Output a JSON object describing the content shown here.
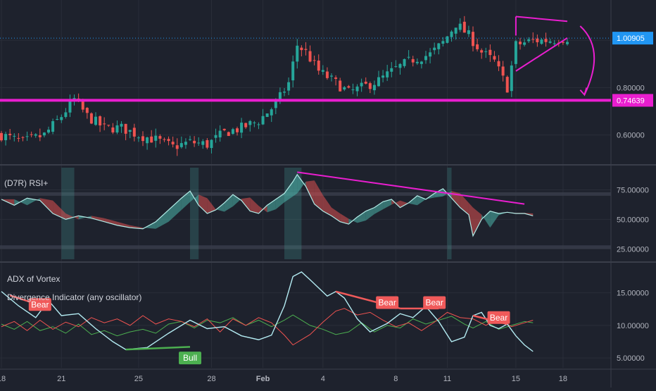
{
  "colors": {
    "background": "#1e222d",
    "grid": "#2a2e39",
    "separator": "#3a3e4a",
    "axis_text": "#b2b5be",
    "bull_candle": "#26a69a",
    "bear_candle": "#ef5350",
    "magenta": "#e91ecf",
    "price_label_bg": "#2196f3",
    "rsi_line": "#b2ebe6",
    "rsi_fill_up": "#4db6ac",
    "rsi_fill_down": "#e05050",
    "rsi_band": "#3a3f4b",
    "vortex_cyan": "#b3ebf2",
    "vortex_red": "#ef5350",
    "vortex_green": "#4caf50",
    "bear_label": "#f05a5a",
    "bull_label": "#4caf50"
  },
  "chart_data": [
    {
      "type": "candlestick",
      "panel": "price",
      "x_ticks": [
        "18",
        "21",
        "25",
        "28",
        "Feb",
        "4",
        "8",
        "11",
        "15",
        "18"
      ],
      "y_ticks": [
        "0.60000",
        "0.80000"
      ],
      "ylim": [
        0.48,
        1.17
      ],
      "current_price_label": "1.00905",
      "current_price": 1.00905,
      "support_label": "0.74639",
      "support_level": 0.74639,
      "annotations": [
        "symmetrical triangle",
        "downward arrow"
      ],
      "close_path": [
        [
          0,
          0.6
        ],
        [
          5,
          0.57
        ],
        [
          10,
          0.6
        ],
        [
          14,
          0.68
        ],
        [
          17,
          0.75
        ],
        [
          20,
          0.68
        ],
        [
          24,
          0.63
        ],
        [
          28,
          0.63
        ],
        [
          32,
          0.6
        ],
        [
          36,
          0.58
        ],
        [
          40,
          0.55
        ],
        [
          44,
          0.57
        ],
        [
          48,
          0.56
        ],
        [
          52,
          0.61
        ],
        [
          56,
          0.63
        ],
        [
          60,
          0.66
        ],
        [
          64,
          0.73
        ],
        [
          67,
          0.82
        ],
        [
          69,
          0.98
        ],
        [
          71,
          0.95
        ],
        [
          74,
          0.87
        ],
        [
          78,
          0.82
        ],
        [
          81,
          0.78
        ],
        [
          84,
          0.8
        ],
        [
          88,
          0.83
        ],
        [
          92,
          0.88
        ],
        [
          96,
          0.92
        ],
        [
          100,
          0.94
        ],
        [
          103,
          0.99
        ],
        [
          106,
          1.07
        ],
        [
          109,
          1.02
        ],
        [
          112,
          0.95
        ],
        [
          115,
          0.91
        ],
        [
          118,
          0.8
        ],
        [
          120,
          0.98
        ],
        [
          124,
          1.0
        ],
        [
          128,
          1.0
        ],
        [
          132,
          1.01
        ]
      ],
      "grid": true
    },
    {
      "type": "line",
      "panel": "rsi",
      "title": "(D7R) RSI+",
      "y_ticks": [
        "25.00000",
        "50.00000",
        "75.00000"
      ],
      "ylim": [
        15,
        95
      ],
      "bands": [
        [
          25,
          28
        ],
        [
          70,
          73
        ]
      ],
      "series": [
        {
          "values": [
            [
              0,
              67
            ],
            [
              3,
              62
            ],
            [
              6,
              68
            ],
            [
              9,
              66
            ],
            [
              12,
              55
            ],
            [
              15,
              50
            ],
            [
              18,
              53
            ],
            [
              21,
              51
            ],
            [
              24,
              48
            ],
            [
              27,
              45
            ],
            [
              30,
              43
            ],
            [
              33,
              42
            ],
            [
              36,
              48
            ],
            [
              39,
              58
            ],
            [
              42,
              68
            ],
            [
              44,
              74
            ],
            [
              46,
              62
            ],
            [
              48,
              55
            ],
            [
              50,
              58
            ],
            [
              52,
              64
            ],
            [
              54,
              71
            ],
            [
              56,
              66
            ],
            [
              58,
              57
            ],
            [
              60,
              55
            ],
            [
              62,
              62
            ],
            [
              64,
              67
            ],
            [
              66,
              72
            ],
            [
              68,
              82
            ],
            [
              69,
              88
            ],
            [
              71,
              78
            ],
            [
              73,
              63
            ],
            [
              75,
              57
            ],
            [
              77,
              53
            ],
            [
              79,
              48
            ],
            [
              81,
              46
            ],
            [
              83,
              52
            ],
            [
              85,
              57
            ],
            [
              87,
              60
            ],
            [
              89,
              65
            ],
            [
              91,
              67
            ],
            [
              93,
              60
            ],
            [
              95,
              64
            ],
            [
              97,
              70
            ],
            [
              99,
              67
            ],
            [
              101,
              72
            ],
            [
              103,
              76
            ],
            [
              105,
              68
            ],
            [
              107,
              60
            ],
            [
              109,
              54
            ],
            [
              110,
              36
            ],
            [
              112,
              50
            ],
            [
              114,
              57
            ],
            [
              116,
              55
            ],
            [
              118,
              56
            ],
            [
              120,
              55
            ],
            [
              122,
              55
            ],
            [
              124,
              53
            ]
          ]
        }
      ],
      "trendline": [
        [
          69,
          90
        ],
        [
          122,
          63
        ]
      ],
      "grid": true
    },
    {
      "type": "line",
      "panel": "vortex",
      "title": "ADX of Vortex",
      "subtitle": "Divergence Indicator (any oscillator)",
      "y_ticks": [
        "5.00000",
        "10.00000",
        "15.00000"
      ],
      "ylim": [
        3.5,
        19.5
      ],
      "series": [
        {
          "color": "cyan",
          "values": [
            [
              0,
              15.2
            ],
            [
              4,
              13.0
            ],
            [
              8,
              11.2
            ],
            [
              11,
              13.8
            ],
            [
              14,
              11.5
            ],
            [
              18,
              11.8
            ],
            [
              22,
              9.5
            ],
            [
              26,
              7.5
            ],
            [
              29,
              6.3
            ],
            [
              34,
              6.6
            ],
            [
              39,
              8.8
            ],
            [
              44,
              10.8
            ],
            [
              48,
              9.5
            ],
            [
              52,
              9.8
            ],
            [
              56,
              8.4
            ],
            [
              60,
              7.8
            ],
            [
              63,
              8.5
            ],
            [
              66,
              13.0
            ],
            [
              68,
              17.5
            ],
            [
              70,
              18.2
            ],
            [
              72,
              17.0
            ],
            [
              76,
              14.5
            ],
            [
              78,
              15.2
            ],
            [
              80,
              14.2
            ],
            [
              83,
              11.0
            ],
            [
              86,
              9.0
            ],
            [
              90,
              10.3
            ],
            [
              93,
              11.8
            ],
            [
              96,
              11.2
            ],
            [
              99,
              12.9
            ],
            [
              102,
              10.6
            ],
            [
              105,
              7.5
            ],
            [
              108,
              8.2
            ],
            [
              110,
              11.5
            ],
            [
              112,
              12.0
            ],
            [
              114,
              10.0
            ],
            [
              116,
              9.5
            ],
            [
              118,
              10.2
            ],
            [
              120,
              8.4
            ],
            [
              122,
              7.0
            ],
            [
              124,
              6.0
            ]
          ]
        },
        {
          "color": "red",
          "values": [
            [
              0,
              9.8
            ],
            [
              3,
              10.6
            ],
            [
              6,
              9.2
            ],
            [
              9,
              10.8
            ],
            [
              12,
              9.4
            ],
            [
              15,
              10.5
            ],
            [
              18,
              9.8
            ],
            [
              21,
              11.2
            ],
            [
              24,
              10.4
            ],
            [
              27,
              11.0
            ],
            [
              30,
              10.0
            ],
            [
              33,
              11.5
            ],
            [
              36,
              10.2
            ],
            [
              39,
              11.0
            ],
            [
              42,
              10.6
            ],
            [
              45,
              9.8
            ],
            [
              48,
              11.0
            ],
            [
              51,
              9.0
            ],
            [
              54,
              11.0
            ],
            [
              57,
              10.0
            ],
            [
              60,
              11.2
            ],
            [
              63,
              10.4
            ],
            [
              66,
              8.5
            ],
            [
              68,
              7.0
            ],
            [
              70,
              7.8
            ],
            [
              72,
              8.6
            ],
            [
              75,
              10.5
            ],
            [
              78,
              12.2
            ],
            [
              80,
              12.6
            ],
            [
              83,
              11.6
            ],
            [
              86,
              12.0
            ],
            [
              89,
              10.8
            ],
            [
              92,
              9.8
            ],
            [
              95,
              10.4
            ],
            [
              98,
              9.2
            ],
            [
              101,
              10.5
            ],
            [
              104,
              12.0
            ],
            [
              107,
              11.2
            ],
            [
              110,
              11.0
            ],
            [
              113,
              10.0
            ],
            [
              116,
              11.0
            ],
            [
              119,
              9.8
            ],
            [
              122,
              10.4
            ],
            [
              124,
              10.8
            ]
          ]
        },
        {
          "color": "green",
          "values": [
            [
              0,
              10.2
            ],
            [
              3,
              9.4
            ],
            [
              6,
              10.6
            ],
            [
              9,
              9.2
            ],
            [
              12,
              9.8
            ],
            [
              15,
              8.8
            ],
            [
              18,
              10.2
            ],
            [
              21,
              8.6
            ],
            [
              24,
              9.2
            ],
            [
              27,
              8.4
            ],
            [
              30,
              9.0
            ],
            [
              33,
              9.4
            ],
            [
              36,
              8.8
            ],
            [
              39,
              10.2
            ],
            [
              42,
              10.6
            ],
            [
              45,
              9.6
            ],
            [
              48,
              10.8
            ],
            [
              51,
              10.4
            ],
            [
              54,
              11.2
            ],
            [
              57,
              10.0
            ],
            [
              60,
              10.8
            ],
            [
              63,
              9.8
            ],
            [
              66,
              10.8
            ],
            [
              68,
              11.6
            ],
            [
              70,
              10.8
            ],
            [
              72,
              10.0
            ],
            [
              75,
              9.4
            ],
            [
              78,
              8.6
            ],
            [
              81,
              9.0
            ],
            [
              84,
              10.4
            ],
            [
              87,
              9.0
            ],
            [
              90,
              10.0
            ],
            [
              93,
              9.6
            ],
            [
              96,
              11.0
            ],
            [
              99,
              10.2
            ],
            [
              102,
              10.8
            ],
            [
              105,
              11.4
            ],
            [
              108,
              10.2
            ],
            [
              110,
              9.6
            ],
            [
              113,
              10.6
            ],
            [
              116,
              9.4
            ],
            [
              119,
              10.0
            ],
            [
              122,
              10.6
            ],
            [
              124,
              10.4
            ]
          ]
        }
      ],
      "divergences": [
        {
          "label": "Bear",
          "from": [
            2,
            14.6
          ],
          "to": [
            11,
            12.7
          ],
          "label_pos": [
            9,
            13.2
          ]
        },
        {
          "label": "Bear",
          "from": [
            78,
            15.2
          ],
          "to": [
            93,
            12.6
          ],
          "label_pos": [
            90,
            13.5
          ]
        },
        {
          "label": "Bear",
          "from": [
            93,
            12.6
          ],
          "to": [
            102,
            12.6
          ],
          "label_pos": [
            101,
            13.5
          ]
        },
        {
          "label": "Bear",
          "from": [
            110,
            11.5
          ],
          "to": [
            118,
            10.2
          ],
          "label_pos": [
            116,
            11.2
          ]
        },
        {
          "label": "Bull",
          "from": [
            29,
            6.3
          ],
          "to": [
            44,
            6.7
          ],
          "label_pos": [
            44,
            5.0
          ]
        }
      ],
      "grid": true
    }
  ]
}
